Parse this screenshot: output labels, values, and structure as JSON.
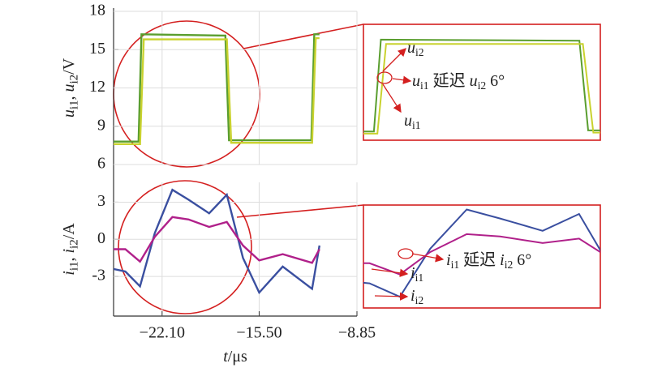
{
  "chart_data": [
    {
      "type": "line",
      "ylabel": [
        {
          "text": "u",
          "italic": true
        },
        {
          "text": "i1",
          "sub": true
        },
        {
          "text": ", "
        },
        {
          "text": "u",
          "italic": true
        },
        {
          "text": "i2",
          "sub": true
        },
        {
          "text": "/V"
        }
      ],
      "xlim": [
        -25.4,
        -8.85
      ],
      "ylim": [
        6,
        18
      ],
      "yticks": [
        6,
        9,
        12,
        15,
        18
      ],
      "grid": true,
      "series": [
        {
          "color": "#5a9e2f",
          "x": [
            -25.4,
            -23.7,
            -23.5,
            -17.8,
            -17.55,
            -11.95,
            -11.75,
            -11.4
          ],
          "values": [
            7.8,
            7.8,
            16.2,
            16.1,
            7.9,
            7.9,
            16.2,
            16.2
          ]
        },
        {
          "color": "#c9d22f",
          "x": [
            -25.4,
            -23.6,
            -23.35,
            -17.7,
            -17.4,
            -11.9,
            -11.65,
            -11.4
          ],
          "values": [
            7.6,
            7.6,
            15.8,
            15.8,
            7.7,
            7.7,
            15.9,
            15.9
          ]
        }
      ],
      "annotations": [
        [
          {
            "text": "u",
            "italic": true
          },
          {
            "text": "i2",
            "sub": true
          }
        ],
        [
          {
            "text": "u",
            "italic": true
          },
          {
            "text": "i1",
            "sub": true
          },
          {
            "text": " 延迟 "
          },
          {
            "text": "u",
            "italic": true
          },
          {
            "text": "i2",
            "sub": true
          },
          {
            "text": " 6°"
          }
        ],
        [
          {
            "text": "u",
            "italic": true
          },
          {
            "text": "i1",
            "sub": true
          }
        ]
      ]
    },
    {
      "type": "line",
      "ylabel": [
        {
          "text": "i",
          "italic": true
        },
        {
          "text": "i1",
          "sub": true
        },
        {
          "text": ", "
        },
        {
          "text": "i",
          "italic": true
        },
        {
          "text": "i2",
          "sub": true
        },
        {
          "text": "/A"
        }
      ],
      "xlabel": [
        {
          "text": "t",
          "italic": true
        },
        {
          "text": "/μs"
        }
      ],
      "xlim": [
        -25.4,
        -8.85
      ],
      "ylim": [
        -6.2,
        4.6
      ],
      "yticks": [
        -3,
        0,
        3
      ],
      "grid": true,
      "xticks": [
        {
          "value": -22.1,
          "label": "−22.10"
        },
        {
          "value": -15.5,
          "label": "−15.50"
        },
        {
          "value": -8.85,
          "label": "−8.85"
        }
      ],
      "series": [
        {
          "color": "#3a4fa0",
          "x": [
            -25.4,
            -24.6,
            -23.6,
            -22.6,
            -21.4,
            -20.3,
            -18.9,
            -17.7,
            -16.6,
            -15.5,
            -13.9,
            -11.9,
            -11.4
          ],
          "values": [
            -2.4,
            -2.6,
            -3.8,
            0.5,
            4.0,
            3.2,
            2.1,
            3.6,
            -1.5,
            -4.3,
            -2.2,
            -4.0,
            -0.5
          ]
        },
        {
          "color": "#b0208a",
          "x": [
            -25.4,
            -24.6,
            -23.6,
            -22.6,
            -21.4,
            -20.3,
            -18.9,
            -17.7,
            -16.6,
            -15.5,
            -13.9,
            -11.9,
            -11.4
          ],
          "values": [
            -0.8,
            -0.8,
            -1.8,
            0.2,
            1.8,
            1.6,
            1.0,
            1.4,
            -0.5,
            -1.7,
            -1.2,
            -1.9,
            -0.8
          ]
        }
      ],
      "annotations": [
        [
          {
            "text": "i",
            "italic": true
          },
          {
            "text": "i1",
            "sub": true
          },
          {
            "text": " 延迟 "
          },
          {
            "text": "i",
            "italic": true
          },
          {
            "text": "i2",
            "sub": true
          },
          {
            "text": " 6°"
          }
        ],
        [
          {
            "text": "i",
            "italic": true
          },
          {
            "text": "i1",
            "sub": true
          }
        ],
        [
          {
            "text": "i",
            "italic": true
          },
          {
            "text": "i2",
            "sub": true
          }
        ]
      ]
    }
  ]
}
